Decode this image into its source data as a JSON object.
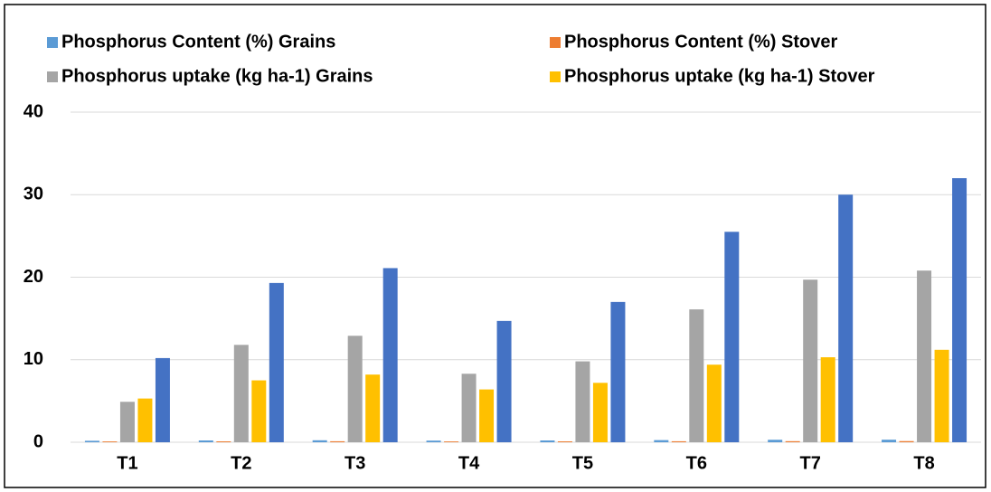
{
  "chart_data": {
    "type": "bar",
    "categories": [
      "T1",
      "T2",
      "T3",
      "T4",
      "T5",
      "T6",
      "T7",
      "T8"
    ],
    "series": [
      {
        "name": "Phosphorus Content (%) Grains",
        "color": "#5b9bd5",
        "values": [
          0.18,
          0.22,
          0.24,
          0.2,
          0.22,
          0.26,
          0.3,
          0.31
        ]
      },
      {
        "name": "Phosphorus Content (%) Stover",
        "color": "#ed7d31",
        "values": [
          0.1,
          0.11,
          0.12,
          0.1,
          0.11,
          0.12,
          0.13,
          0.14
        ]
      },
      {
        "name": "Phosphorus uptake  (kg ha-1) Grains",
        "color": "#a5a5a5",
        "values": [
          4.9,
          11.8,
          12.9,
          8.3,
          9.8,
          16.1,
          19.7,
          20.8
        ]
      },
      {
        "name": "Phosphorus uptake  (kg ha-1) Stover",
        "color": "#ffc000",
        "values": [
          5.3,
          7.5,
          8.2,
          6.4,
          7.2,
          9.4,
          10.3,
          11.2
        ]
      },
      {
        "color": "#4472c4",
        "values": [
          10.2,
          19.3,
          21.1,
          14.7,
          17.0,
          25.5,
          30.0,
          32.0
        ]
      }
    ],
    "ylim": [
      0,
      40
    ],
    "yticks": [
      0,
      10,
      20,
      30,
      40
    ],
    "grid": true,
    "legend": "top"
  }
}
